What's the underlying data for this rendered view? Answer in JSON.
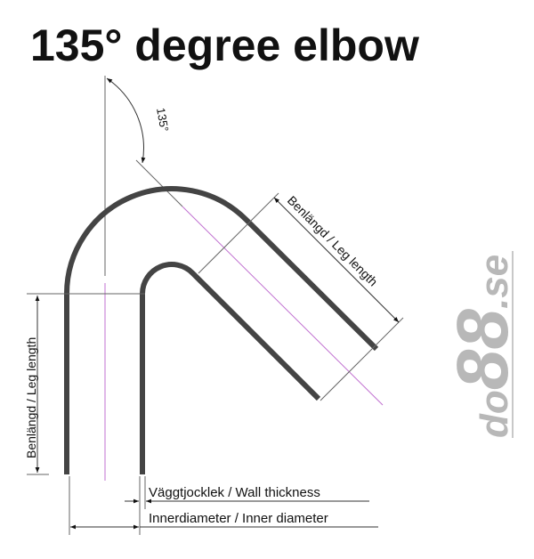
{
  "title": "135° degree elbow",
  "angle_label": "135°",
  "leg_length_label": "Benlängd / Leg length",
  "wall_thickness_label": "Väggtjocklek / Wall thickness",
  "inner_diameter_label": "Innerdiameter / Inner diameter",
  "logo": {
    "prefix": "do",
    "main": "88",
    "suffix": ".se"
  },
  "colors": {
    "pipe": "#444444",
    "centerline": "#c070d0",
    "dimension": "#555555",
    "logo": "#b8b8b8"
  }
}
